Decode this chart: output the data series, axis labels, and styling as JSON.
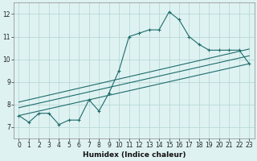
{
  "xlabel": "Humidex (Indice chaleur)",
  "ylabel": "",
  "bg_color": "#dff2f2",
  "grid_color": "#b8d8d8",
  "line_color": "#1e6b6b",
  "xlim": [
    -0.5,
    23.5
  ],
  "ylim": [
    6.5,
    12.5
  ],
  "xticks": [
    0,
    1,
    2,
    3,
    4,
    5,
    6,
    7,
    8,
    9,
    10,
    11,
    12,
    13,
    14,
    15,
    16,
    17,
    18,
    19,
    20,
    21,
    22,
    23
  ],
  "yticks": [
    7,
    8,
    9,
    10,
    11,
    12
  ],
  "main_line_x": [
    0,
    1,
    2,
    3,
    4,
    5,
    6,
    7,
    8,
    9,
    10,
    11,
    12,
    13,
    14,
    15,
    16,
    17,
    18,
    19,
    20,
    21,
    22,
    23
  ],
  "main_line_y": [
    7.5,
    7.2,
    7.6,
    7.6,
    7.1,
    7.3,
    7.3,
    8.2,
    7.7,
    8.5,
    9.5,
    11.0,
    11.15,
    11.3,
    11.3,
    12.1,
    11.75,
    11.0,
    10.65,
    10.4,
    10.4,
    10.4,
    10.4,
    9.8
  ],
  "linear_lines": [
    {
      "x": [
        0,
        23
      ],
      "y": [
        7.5,
        9.8
      ]
    },
    {
      "x": [
        0,
        23
      ],
      "y": [
        7.85,
        10.15
      ]
    },
    {
      "x": [
        0,
        23
      ],
      "y": [
        8.1,
        10.45
      ]
    }
  ],
  "tick_fontsize": 5.5,
  "xlabel_fontsize": 6.5
}
